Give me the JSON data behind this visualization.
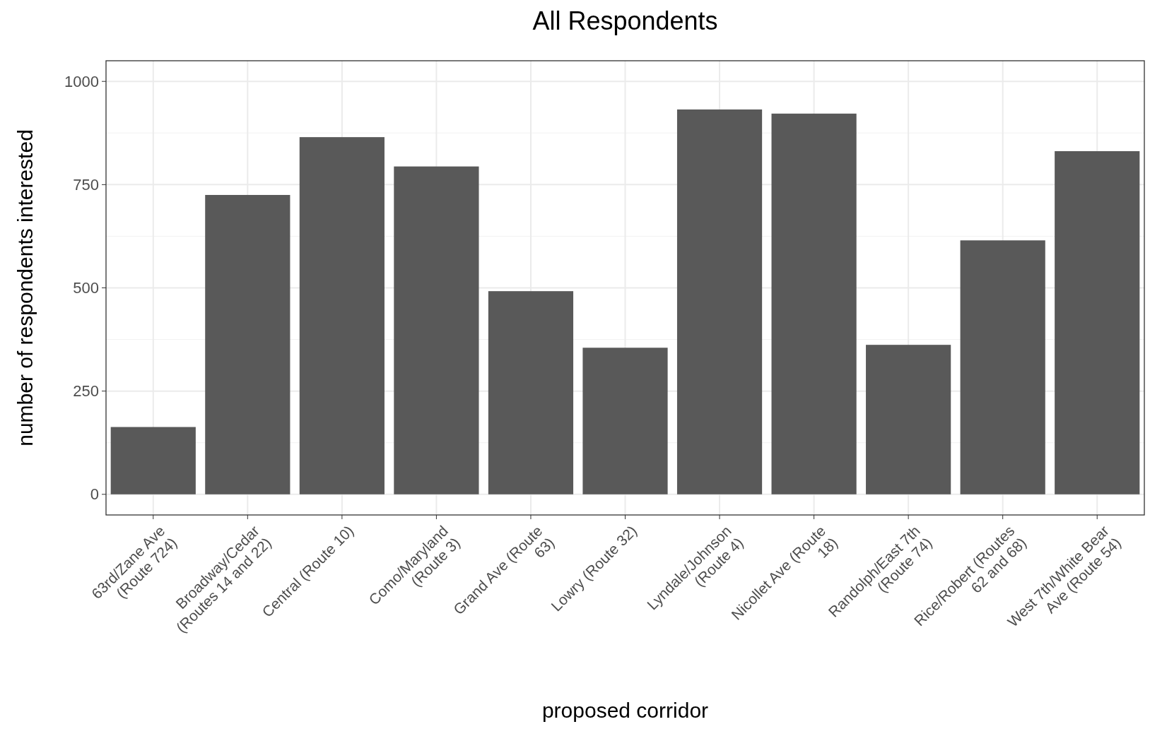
{
  "chart_data": {
    "type": "bar",
    "title": "All Respondents",
    "xlabel": "proposed corridor",
    "ylabel": "number of respondents interested",
    "categories": [
      "63rd/Zane Ave\n(Route 724)",
      "Broadway/Cedar\n(Routes 14 and 22)",
      "Central (Route 10)",
      "Como/Maryland\n(Route 3)",
      "Grand Ave (Route\n63)",
      "Lowry (Route 32)",
      "Lyndale/Johnson\n(Route 4)",
      "Nicollet Ave (Route\n18)",
      "Randolph/East 7th\n(Route 74)",
      "Rice/Robert (Routes\n62 and 68)",
      "West 7th/White Bear\nAve (Route 54)"
    ],
    "values": [
      163,
      725,
      865,
      794,
      492,
      355,
      932,
      922,
      362,
      615,
      831
    ],
    "color": "#595959",
    "ylim": [
      -50,
      1050
    ],
    "yticks": [
      0,
      250,
      500,
      750,
      1000
    ],
    "grid": true
  }
}
